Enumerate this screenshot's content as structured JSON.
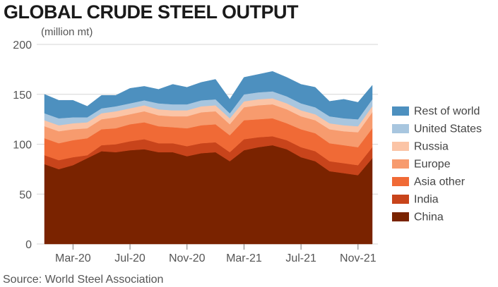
{
  "chart_data": {
    "type": "area",
    "stacked": true,
    "title": "GLOBAL CRUDE STEEL OUTPUT",
    "ylabel": "(million mt)",
    "source": "Source: World Steel Association",
    "ylim": [
      0,
      200
    ],
    "yticks": [
      0,
      50,
      100,
      150,
      200
    ],
    "grid": true,
    "legend_position": "right",
    "x": [
      "Jan-20",
      "Feb-20",
      "Mar-20",
      "Apr-20",
      "May-20",
      "Jun-20",
      "Jul-20",
      "Aug-20",
      "Sep-20",
      "Oct-20",
      "Nov-20",
      "Dec-20",
      "Jan-21",
      "Feb-21",
      "Mar-21",
      "Apr-21",
      "May-21",
      "Jun-21",
      "Jul-21",
      "Aug-21",
      "Sep-21",
      "Oct-21",
      "Nov-21",
      "Dec-21"
    ],
    "x_tick_labels": [
      {
        "index": 2,
        "label": "Mar-20"
      },
      {
        "index": 6,
        "label": "Jul-20"
      },
      {
        "index": 10,
        "label": "Nov-20"
      },
      {
        "index": 14,
        "label": "Mar-21"
      },
      {
        "index": 18,
        "label": "Jul-21"
      },
      {
        "index": 22,
        "label": "Nov-21"
      }
    ],
    "series": [
      {
        "name": "China",
        "color": "#7a2300",
        "values": [
          80,
          75,
          79,
          86,
          93,
          92,
          94,
          95,
          92,
          92,
          88,
          91,
          92,
          83,
          94,
          97,
          99,
          95,
          87,
          83,
          73,
          71,
          69,
          86
        ]
      },
      {
        "name": "India",
        "color": "#c8441b",
        "values": [
          9,
          9,
          8,
          3,
          6,
          8,
          9,
          10,
          9,
          9,
          10,
          10,
          10,
          9,
          11,
          10,
          9,
          9,
          10,
          10,
          10,
          10,
          10,
          11
        ]
      },
      {
        "name": "Asia other",
        "color": "#f06a36",
        "values": [
          17,
          17,
          17,
          17,
          16,
          16,
          17,
          17,
          17,
          16,
          18,
          18,
          18,
          17,
          19,
          18,
          18,
          17,
          18,
          18,
          18,
          18,
          18,
          19
        ]
      },
      {
        "name": "Europe",
        "color": "#f79b6e",
        "values": [
          12,
          12,
          11,
          10,
          10,
          11,
          10,
          11,
          11,
          11,
          12,
          13,
          13,
          11,
          13,
          14,
          14,
          14,
          13,
          13,
          14,
          14,
          15,
          16
        ]
      },
      {
        "name": "Russia",
        "color": "#fbc4a6",
        "values": [
          6,
          6,
          6,
          6,
          6,
          6,
          6,
          6,
          6,
          6,
          6,
          6,
          6,
          6,
          6,
          6,
          6,
          6,
          6,
          6,
          6,
          6,
          6,
          6
        ]
      },
      {
        "name": "United States",
        "color": "#a8c6df",
        "values": [
          7,
          7,
          6,
          5,
          5,
          5,
          5,
          5,
          6,
          6,
          6,
          6,
          6,
          5,
          7,
          7,
          7,
          7,
          7,
          7,
          7,
          7,
          7,
          7
        ]
      },
      {
        "name": "Rest of world",
        "color": "#4d90bf",
        "values": [
          19,
          18,
          17,
          11,
          13,
          11,
          15,
          14,
          14,
          20,
          17,
          18,
          20,
          14,
          17,
          18,
          20,
          19,
          19,
          20,
          15,
          19,
          17,
          14
        ]
      }
    ]
  }
}
